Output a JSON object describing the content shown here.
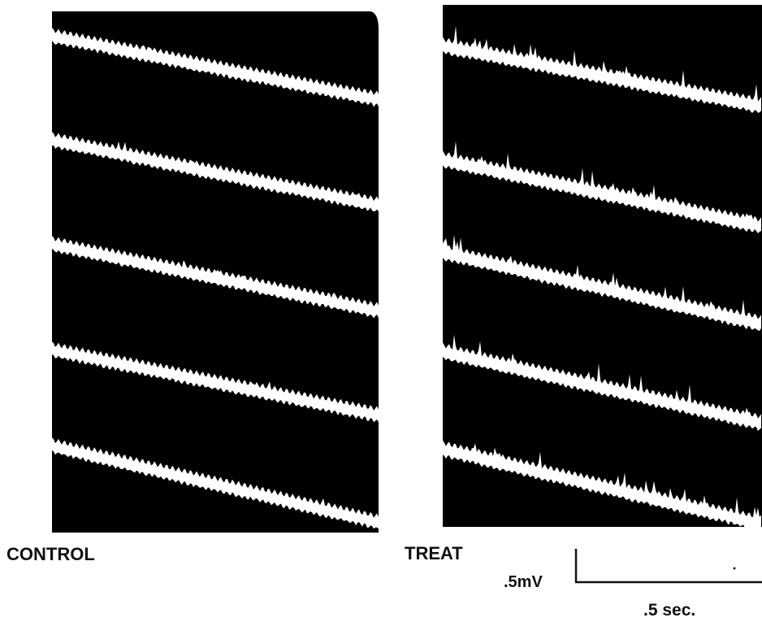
{
  "panels": {
    "control": {
      "label": "CONTROL",
      "sweep_count": 5,
      "spike_activity": "low"
    },
    "treat": {
      "label": "TREAT",
      "sweep_count": 5,
      "spike_activity": "high"
    }
  },
  "scale_bar": {
    "voltage_label": ".5mV",
    "time_label": ".5 sec."
  },
  "colors": {
    "panel_fill": "#000000",
    "trace": "#ffffff",
    "background": "#ffffff",
    "text": "#111111"
  }
}
